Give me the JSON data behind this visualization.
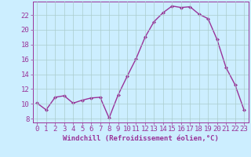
{
  "x": [
    0,
    1,
    2,
    3,
    4,
    5,
    6,
    7,
    8,
    9,
    10,
    11,
    12,
    13,
    14,
    15,
    16,
    17,
    18,
    19,
    20,
    21,
    22,
    23
  ],
  "y": [
    10.1,
    9.2,
    10.9,
    11.1,
    10.1,
    10.5,
    10.8,
    10.9,
    8.1,
    11.2,
    13.7,
    16.1,
    19.0,
    21.1,
    22.3,
    23.2,
    23.0,
    23.1,
    22.1,
    21.5,
    18.7,
    14.9,
    12.6,
    9.2
  ],
  "line_color": "#993399",
  "marker": "D",
  "marker_size": 2,
  "background_color": "#cceeff",
  "grid_color": "#aacccc",
  "xlabel": "Windchill (Refroidissement éolien,°C)",
  "ylim": [
    7.5,
    23.8
  ],
  "xlim": [
    -0.5,
    23.5
  ],
  "yticks": [
    8,
    10,
    12,
    14,
    16,
    18,
    20,
    22
  ],
  "xticks": [
    0,
    1,
    2,
    3,
    4,
    5,
    6,
    7,
    8,
    9,
    10,
    11,
    12,
    13,
    14,
    15,
    16,
    17,
    18,
    19,
    20,
    21,
    22,
    23
  ],
  "xlabel_fontsize": 6.5,
  "tick_fontsize": 6.5,
  "line_width": 1.0
}
